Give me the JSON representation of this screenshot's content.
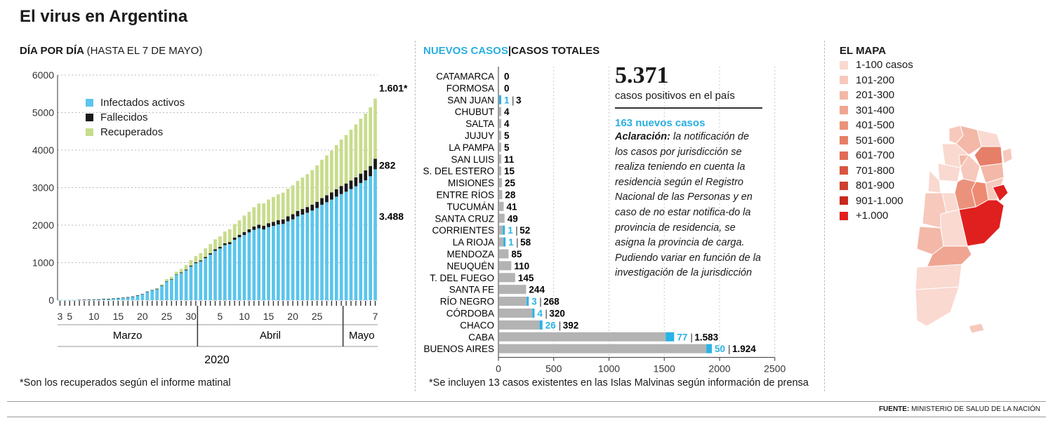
{
  "title": "El virus en Argentina",
  "left": {
    "heading": "DÍA POR DÍA",
    "heading_note": "(HASTA EL 7 DE MAYO)",
    "footnote": "*Son los recuperados según el informe matinal",
    "year": "2020"
  },
  "middle": {
    "heading_new": "NUEVOS CASOS",
    "heading_sep": "|",
    "heading_total": "CASOS TOTALES",
    "total_number": "5.371",
    "total_caption": "casos positivos en el país",
    "new_cases": "163 nuevos casos",
    "clarification_label": "Aclaración:",
    "clarification_text": " la notificación de los casos por jurisdicción se realiza teniendo en cuenta la residencia según el Registro Nacional de las Personas y en caso de no estar notifica-do la provincia de residencia, se asigna la provincia de carga. Pudiendo variar en función de la investigación de la jurisdicción",
    "footnote": "*Se incluyen 13 casos existentes en las Islas Malvinas según información de prensa"
  },
  "right": {
    "heading": "EL MAPA",
    "legend": [
      "1-100 casos",
      "101-200",
      "201-300",
      "301-400",
      "401-500",
      "501-600",
      "601-700",
      "701-800",
      "801-900",
      "901-1.000",
      "+1.000"
    ],
    "legend_colors": [
      "#f9d9d0",
      "#f6c9bc",
      "#f3b8a7",
      "#efa591",
      "#eb927c",
      "#e57f67",
      "#df6b54",
      "#d85641",
      "#cf3f2e",
      "#c9281e",
      "#e0201f"
    ]
  },
  "source_label": "FUENTE:",
  "source_text": "MINISTERIO DE SALUD DE LA NACIÓN",
  "colors": {
    "active": "#5bc5ec",
    "dead": "#1a1a1a",
    "recovered": "#c8dc8c",
    "bar_total": "#b3b3b3",
    "bar_new": "#29b3e6",
    "accent": "#29aee0"
  },
  "chart_data": [
    {
      "type": "bar",
      "stacked": true,
      "title": "DÍA POR DÍA (HASTA EL 7 DE MAYO)",
      "x_ticks": [
        "3",
        "5",
        "10",
        "15",
        "20",
        "25",
        "30",
        "5",
        "10",
        "15",
        "20",
        "25",
        "7"
      ],
      "months": [
        "Marzo",
        "Abril",
        "Mayo"
      ],
      "ylim": [
        0,
        6000
      ],
      "y_ticks": [
        0,
        1000,
        2000,
        3000,
        4000,
        5000,
        6000
      ],
      "dates": [
        "03-03",
        "03-04",
        "03-05",
        "03-06",
        "03-07",
        "03-08",
        "03-09",
        "03-10",
        "03-11",
        "03-12",
        "03-13",
        "03-14",
        "03-15",
        "03-16",
        "03-17",
        "03-18",
        "03-19",
        "03-20",
        "03-21",
        "03-22",
        "03-23",
        "03-24",
        "03-25",
        "03-26",
        "03-27",
        "03-28",
        "03-29",
        "03-30",
        "03-31",
        "04-01",
        "04-02",
        "04-03",
        "04-04",
        "04-05",
        "04-06",
        "04-07",
        "04-08",
        "04-09",
        "04-10",
        "04-11",
        "04-12",
        "04-13",
        "04-14",
        "04-15",
        "04-16",
        "04-17",
        "04-18",
        "04-19",
        "04-20",
        "04-21",
        "04-22",
        "04-23",
        "04-24",
        "04-25",
        "04-26",
        "04-27",
        "04-28",
        "04-29",
        "04-30",
        "05-01",
        "05-02",
        "05-03",
        "05-04",
        "05-05",
        "05-06",
        "05-07"
      ],
      "series": [
        {
          "name": "Infectados activos",
          "values": [
            1,
            1,
            2,
            2,
            8,
            12,
            17,
            19,
            21,
            31,
            34,
            45,
            56,
            65,
            79,
            97,
            128,
            158,
            225,
            266,
            301,
            387,
            502,
            554,
            675,
            723,
            795,
            897,
            985,
            1033,
            1120,
            1213,
            1313,
            1377,
            1468,
            1495,
            1609,
            1677,
            1736,
            1806,
            1873,
            1916,
            1883,
            1947,
            1980,
            2020,
            2031,
            2102,
            2154,
            2235,
            2281,
            2331,
            2388,
            2456,
            2543,
            2611,
            2681,
            2760,
            2829,
            2891,
            2962,
            3035,
            3123,
            3194,
            3303,
            3488
          ]
        },
        {
          "name": "Fallecidos",
          "values": [
            0,
            0,
            0,
            0,
            1,
            1,
            1,
            2,
            2,
            2,
            2,
            2,
            2,
            2,
            2,
            2,
            3,
            3,
            4,
            4,
            4,
            4,
            6,
            8,
            12,
            17,
            20,
            23,
            24,
            27,
            32,
            37,
            43,
            44,
            46,
            53,
            60,
            65,
            79,
            82,
            89,
            95,
            101,
            105,
            108,
            110,
            122,
            132,
            136,
            142,
            148,
            152,
            159,
            165,
            176,
            185,
            192,
            197,
            214,
            219,
            228,
            239,
            248,
            264,
            273,
            282
          ]
        },
        {
          "name": "Recuperados",
          "values": [
            0,
            0,
            0,
            0,
            0,
            0,
            0,
            0,
            0,
            0,
            0,
            0,
            0,
            0,
            0,
            0,
            0,
            0,
            0,
            0,
            20,
            32,
            52,
            63,
            72,
            93,
            120,
            147,
            168,
            195,
            229,
            247,
            266,
            279,
            315,
            340,
            359,
            385,
            440,
            468,
            515,
            565,
            596,
            628,
            664,
            688,
            713,
            737,
            768,
            802,
            840,
            876,
            919,
            972,
            1023,
            1064,
            1112,
            1177,
            1236,
            1292,
            1354,
            1410,
            1466,
            1515,
            1566,
            1601
          ]
        }
      ],
      "labels": [
        "1.601*",
        "282",
        "3.488"
      ]
    },
    {
      "type": "bar",
      "orientation": "horizontal",
      "xlim": [
        0,
        2500
      ],
      "x_ticks": [
        0,
        500,
        1000,
        1500,
        2000,
        2500
      ],
      "categories": [
        "CATAMARCA",
        "FORMOSA",
        "SAN JUAN",
        "CHUBUT",
        "SALTA",
        "JUJUY",
        "LA PAMPA",
        "SAN LUIS",
        "S. DEL ESTERO",
        "MISIONES",
        "ENTRE RÍOS",
        "TUCUMÁN",
        "SANTA CRUZ",
        "CORRIENTES",
        "LA RIOJA",
        "MENDOZA",
        "NEUQUÉN",
        "T. DEL FUEGO",
        "SANTA FE",
        "RÍO NEGRO",
        "CÓRDOBA",
        "CHACO",
        "CABA",
        "BUENOS AIRES"
      ],
      "series": [
        {
          "name": "NUEVOS CASOS",
          "values": [
            0,
            0,
            1,
            0,
            0,
            0,
            0,
            0,
            0,
            0,
            0,
            0,
            0,
            1,
            1,
            0,
            0,
            0,
            0,
            3,
            4,
            26,
            77,
            50
          ]
        },
        {
          "name": "CASOS TOTALES",
          "values": [
            0,
            0,
            3,
            4,
            4,
            5,
            5,
            11,
            15,
            25,
            28,
            41,
            49,
            52,
            58,
            85,
            110,
            145,
            244,
            268,
            320,
            392,
            1583,
            1924
          ]
        }
      ],
      "value_labels_new": [
        "",
        "",
        "1",
        "",
        "",
        "",
        "",
        "",
        "",
        "",
        "",
        "",
        "",
        "1",
        "1",
        "",
        "",
        "",
        "",
        "3",
        "4",
        "26",
        "77",
        "50"
      ],
      "value_labels_total": [
        "0",
        "0",
        "3",
        "4",
        "4",
        "5",
        "5",
        "11",
        "15",
        "25",
        "28",
        "41",
        "49",
        "52",
        "58",
        "85",
        "110",
        "145",
        "244",
        "268",
        "320",
        "392",
        "1.583",
        "1.924"
      ]
    }
  ]
}
